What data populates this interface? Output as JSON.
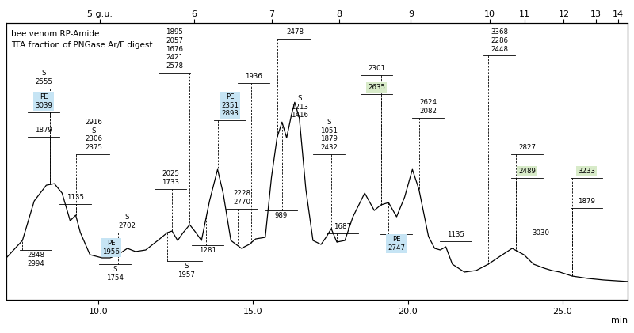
{
  "chart_data": {
    "type": "line",
    "title": "bee venom RP-Amide",
    "subtitle": "TFA fraction of PNGase Ar/F digest",
    "x_label": "min",
    "color": "#000000",
    "x": [
      7.04,
      7.56,
      7.94,
      8.33,
      8.59,
      8.84,
      9.1,
      9.28,
      9.43,
      9.74,
      10.13,
      10.39,
      10.64,
      10.95,
      11.21,
      11.54,
      11.93,
      12.24,
      12.39,
      12.57,
      12.75,
      12.96,
      13.16,
      13.34,
      13.6,
      13.86,
      14.04,
      14.29,
      14.63,
      14.88,
      15.09,
      15.4,
      15.6,
      15.78,
      15.94,
      16.09,
      16.25,
      16.35,
      16.5,
      16.71,
      16.94,
      17.2,
      17.38,
      17.53,
      17.71,
      17.97,
      18.23,
      18.61,
      18.92,
      19.13,
      19.38,
      19.64,
      19.9,
      20.15,
      20.36,
      20.67,
      20.87,
      21.05,
      21.23,
      21.44,
      21.83,
      22.21,
      22.6,
      22.98,
      23.37,
      23.75,
      24.06,
      24.4,
      24.65,
      24.91,
      25.3,
      25.81,
      26.32,
      27.1
    ],
    "values": [
      53,
      75,
      125,
      145,
      147,
      135,
      100,
      107,
      85,
      57,
      53,
      53,
      57,
      65,
      61,
      63,
      75,
      85,
      87,
      75,
      85,
      95,
      85,
      75,
      125,
      165,
      135,
      75,
      65,
      70,
      77,
      79,
      155,
      205,
      225,
      205,
      235,
      250,
      230,
      140,
      75,
      70,
      80,
      90,
      73,
      75,
      105,
      135,
      113,
      120,
      123,
      105,
      130,
      165,
      140,
      80,
      65,
      63,
      67,
      45,
      35,
      37,
      45,
      55,
      65,
      57,
      45,
      40,
      37,
      35,
      30,
      27,
      25,
      23
    ],
    "xlim": [
      7.04,
      27.1
    ],
    "ylim": [
      0,
      350
    ],
    "xticks": [
      {
        "value": 10,
        "label": "10.0"
      },
      {
        "value": 15,
        "label": "15.0"
      },
      {
        "value": 20,
        "label": "20.0"
      },
      {
        "value": 25,
        "label": "25.0"
      }
    ],
    "x2ticks": [
      {
        "value": 10.05,
        "label": "5 g.u."
      },
      {
        "value": 13.11,
        "label": "6"
      },
      {
        "value": 15.61,
        "label": "7"
      },
      {
        "value": 17.79,
        "label": "8"
      },
      {
        "value": 20.1,
        "label": "9"
      },
      {
        "value": 22.65,
        "label": "10"
      },
      {
        "value": 23.78,
        "label": "11"
      },
      {
        "value": 25.04,
        "label": "12"
      },
      {
        "value": 26.07,
        "label": "13"
      },
      {
        "value": 26.79,
        "label": "14"
      }
    ],
    "tick_labels": "x",
    "annotations": [
      {
        "x": 8.46,
        "labels": [
          "S",
          "2555"
        ]
      },
      {
        "x": 8.46,
        "labels": [
          "PE",
          "3039"
        ],
        "color": "#c6e4f4"
      },
      {
        "x": 8.46,
        "labels": [
          "1879"
        ]
      },
      {
        "x": 7.56,
        "labels": [
          "2848",
          "2994"
        ]
      },
      {
        "x": 9.28,
        "labels": [
          "2916",
          "S",
          "2306",
          "2375"
        ]
      },
      {
        "x": 9.28,
        "labels": [
          "1135"
        ]
      },
      {
        "x": 10.64,
        "labels": [
          "S",
          "2702"
        ]
      },
      {
        "x": 10.64,
        "labels": [
          "PE",
          "1956"
        ],
        "color": "#c6e4f4"
      },
      {
        "x": 10.64,
        "labels": [
          "S",
          "1754"
        ]
      },
      {
        "x": 12.96,
        "labels": [
          "1895",
          "2057",
          "1676",
          "2421",
          "2578"
        ]
      },
      {
        "x": 12.39,
        "labels": [
          "2025",
          "1733"
        ]
      },
      {
        "x": 12.24,
        "labels": [
          "S",
          "1957"
        ]
      },
      {
        "x": 13.5,
        "labels": [
          "1281"
        ]
      },
      {
        "x": 13.86,
        "labels": [
          "PE",
          "2351",
          "2893"
        ],
        "color": "#c6e4f4"
      },
      {
        "x": 14.95,
        "labels": [
          "1936"
        ]
      },
      {
        "x": 14.5,
        "labels": [
          "2228",
          "2770"
        ]
      },
      {
        "x": 15.94,
        "labels": [
          "989"
        ]
      },
      {
        "x": 15.78,
        "labels": [
          "2478"
        ]
      },
      {
        "x": 16.35,
        "labels": [
          "S",
          "1213",
          "1416"
        ]
      },
      {
        "x": 17.53,
        "labels": [
          "S",
          "1051",
          "1879",
          "2432"
        ]
      },
      {
        "x": 17.71,
        "labels": [
          "1687"
        ]
      },
      {
        "x": 19.13,
        "labels": [
          "2301"
        ]
      },
      {
        "x": 19.13,
        "labels": [
          "2635"
        ],
        "color": "#d8ebc9"
      },
      {
        "x": 19.38,
        "labels": [
          "PE",
          "2747"
        ],
        "color": "#c6e4f4"
      },
      {
        "x": 20.36,
        "labels": [
          "2624",
          "2082"
        ]
      },
      {
        "x": 21.44,
        "labels": [
          "1135"
        ]
      },
      {
        "x": 22.6,
        "labels": [
          "3368",
          "2286",
          "2448"
        ]
      },
      {
        "x": 23.5,
        "labels": [
          "2827"
        ]
      },
      {
        "x": 23.5,
        "labels": [
          "2489"
        ],
        "color": "#d8ebc9"
      },
      {
        "x": 24.65,
        "labels": [
          "3030"
        ]
      },
      {
        "x": 25.3,
        "labels": [
          "3233"
        ],
        "color": "#d8ebc9"
      },
      {
        "x": 25.3,
        "labels": [
          "1879"
        ]
      }
    ]
  }
}
